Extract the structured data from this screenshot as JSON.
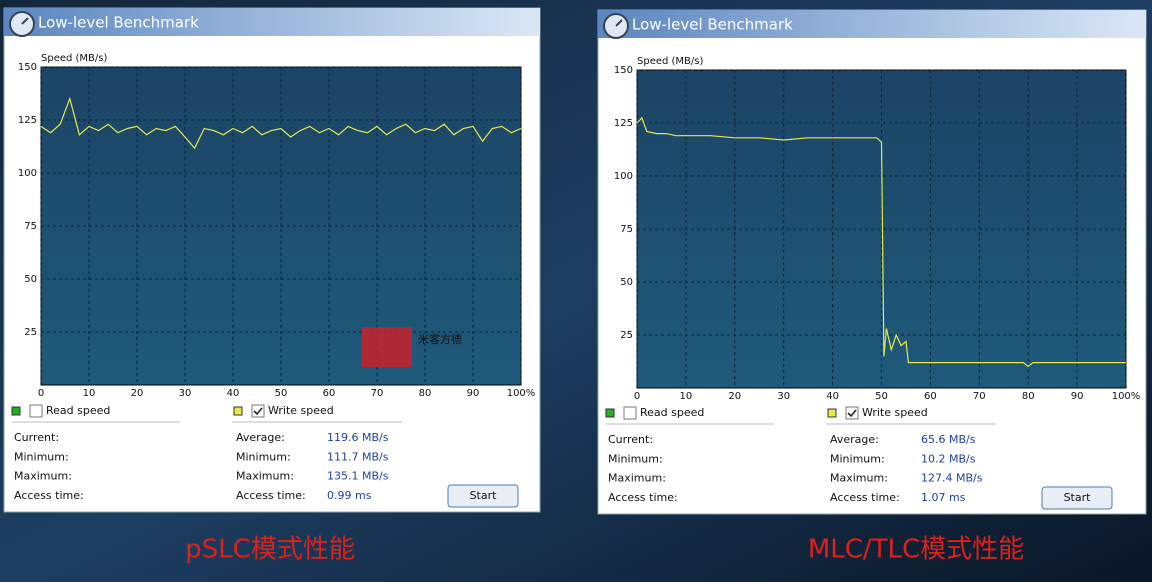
{
  "chart_data": [
    {
      "type": "line",
      "y_label": "Speed (MB/s)",
      "x": [
        0,
        2,
        4,
        6,
        8,
        10,
        12,
        14,
        16,
        18,
        20,
        22,
        24,
        26,
        28,
        30,
        32,
        34,
        36,
        38,
        40,
        42,
        44,
        46,
        48,
        50,
        52,
        54,
        56,
        58,
        60,
        62,
        64,
        66,
        68,
        70,
        72,
        74,
        76,
        78,
        80,
        82,
        84,
        86,
        88,
        90,
        92,
        94,
        96,
        98,
        100
      ],
      "series": [
        {
          "name": "Write speed",
          "color": "#e8e84a",
          "values": [
            122,
            119,
            123,
            135.1,
            118,
            122,
            120,
            123,
            119,
            121,
            122,
            118,
            121,
            120,
            122,
            117,
            111.7,
            121,
            120,
            118,
            121,
            119,
            122,
            118,
            120,
            121,
            117,
            120,
            122,
            119,
            121,
            118,
            122,
            120,
            119,
            122,
            118,
            121,
            123,
            119,
            121,
            120,
            123,
            118,
            121,
            122,
            115,
            121,
            122,
            119,
            121
          ]
        }
      ],
      "xlim": [
        0,
        100
      ],
      "ylim": [
        0,
        150
      ],
      "xticks": [
        0,
        10,
        20,
        30,
        40,
        50,
        60,
        70,
        80,
        90,
        {
          "value": 100,
          "label": "100%"
        }
      ],
      "yticks": [
        25,
        50,
        75,
        100,
        125,
        150
      ],
      "grid": true
    },
    {
      "type": "line",
      "y_label": "Speed (MB/s)",
      "x": [
        0,
        1,
        2,
        4,
        6,
        8,
        10,
        15,
        20,
        25,
        30,
        35,
        40,
        45,
        49,
        50,
        50.5,
        51,
        52,
        53,
        54,
        55,
        55.5,
        60,
        65,
        70,
        75,
        79,
        80,
        81,
        85,
        90,
        95,
        100
      ],
      "series": [
        {
          "name": "Write speed",
          "color": "#e8e84a",
          "values": [
            125,
            127.4,
            121,
            120,
            120,
            119,
            119,
            119,
            118,
            118,
            117,
            118,
            118,
            118,
            118,
            116,
            15,
            28,
            18,
            25,
            20,
            22,
            12,
            12,
            12,
            12,
            12,
            12,
            10.2,
            12,
            12,
            12,
            12,
            12
          ]
        }
      ],
      "xlim": [
        0,
        100
      ],
      "ylim": [
        0,
        150
      ],
      "xticks": [
        0,
        10,
        20,
        30,
        40,
        50,
        60,
        70,
        80,
        90,
        {
          "value": 100,
          "label": "100%"
        }
      ],
      "yticks": [
        25,
        50,
        75,
        100,
        125,
        150
      ],
      "grid": true
    }
  ],
  "windows": [
    {
      "title": "Low-level Benchmark",
      "read_label": "Read speed",
      "stats_left": [
        "Current:",
        "Minimum:",
        "Maximum:",
        "Access time:"
      ],
      "stats_right": [
        [
          "Average:",
          "119.6 MB/s"
        ],
        [
          "Minimum:",
          "111.7 MB/s"
        ],
        [
          "Maximum:",
          "135.1 MB/s"
        ],
        [
          "Access time:",
          "0.99 ms"
        ]
      ],
      "button": "Start"
    },
    {
      "title": "Low-level Benchmark",
      "read_label": "Read speed",
      "stats_left": [
        "Current:",
        "Minimum:",
        "Maximum:",
        "Access time:"
      ],
      "stats_right": [
        [
          "Average:",
          "65.6 MB/s"
        ],
        [
          "Minimum:",
          "10.2 MB/s"
        ],
        [
          "Maximum:",
          "127.4 MB/s"
        ],
        [
          "Access time:",
          "1.07 ms"
        ]
      ],
      "button": "Start"
    }
  ],
  "watermark": "米客方德",
  "captions": [
    "pSLC模式性能",
    "MLC/TLC模式性能"
  ]
}
